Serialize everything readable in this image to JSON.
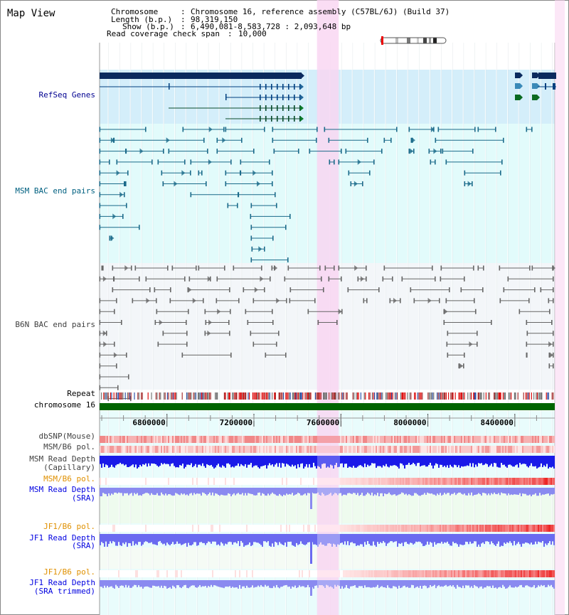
{
  "title": "Map View",
  "info": [
    {
      "key": "Chromosome",
      "value": "Chromosome 16, reference assembly (C57BL/6J) (Build 37)"
    },
    {
      "key": "Length (b.p.)",
      "value": "98,319,150"
    },
    {
      "key": "Show (b.p.)",
      "value": "6,490,081-8,583,728 : 2,093,648 bp"
    },
    {
      "key": "Read coverage check span",
      "value": "10,000"
    }
  ],
  "tracks": {
    "refseq": "RefSeq Genes",
    "msm_bac": "MSM BAC end pairs",
    "b6n_bac": "B6N BAC end pairs",
    "repeat": "Repeat",
    "chrom": "chromosome 16",
    "dbsnp": "dbSNP(Mouse)",
    "msm_b6_pol": "MSM/B6 pol.",
    "msm_depth_cap_1": "MSM Read Depth",
    "msm_depth_cap_2": "(Capillary)",
    "msm_b6_pol2": "MSM/B6 pol.",
    "msm_depth_sra_1": "MSM Read Depth",
    "msm_depth_sra_2": "(SRA)",
    "jf1_b6_pol": "JF1/B6 pol.",
    "jf1_depth_sra_1": "JF1 Read Depth",
    "jf1_depth_sra_2": "(SRA)",
    "jf1_b6_pol2": "JF1/B6 pol.",
    "jf1_depth_trim_1": "JF1 Read Depth",
    "jf1_depth_trim_2": "(SRA trimmed)"
  },
  "ruler_ticks": [
    {
      "label": "6800000",
      "pos": 6800000
    },
    {
      "label": "7200000",
      "pos": 7200000
    },
    {
      "label": "7600000",
      "pos": 7600000
    },
    {
      "label": "8000000",
      "pos": 8000000
    },
    {
      "label": "8400000",
      "pos": 8400000
    }
  ],
  "view": {
    "start": 6490081,
    "end": 8583728
  },
  "highlight": {
    "start": 7490000,
    "end": 7590000
  },
  "colors": {
    "refseq_bg": "#d4eefa",
    "msm_bg": "#e2fbfb",
    "b6n_bg": "#f3f6f9",
    "track_bg": "#e9fcfc",
    "highlight": "#f9d4f1",
    "chrom": "#006400",
    "depth": "#2222ee",
    "depth_light": "#8888f0",
    "label_blue": "#000090",
    "label_msm": "#006080",
    "label_gray": "#404040",
    "label_orange": "#e09000"
  }
}
